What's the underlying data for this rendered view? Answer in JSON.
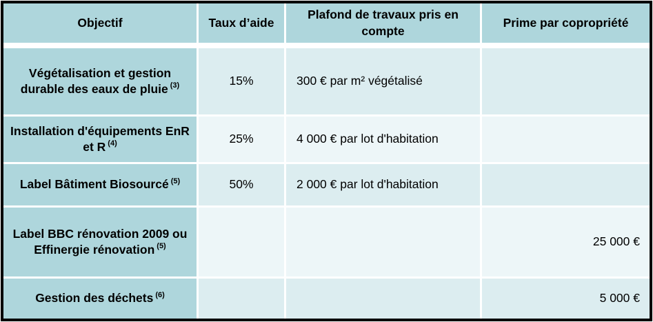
{
  "table": {
    "columns": [
      {
        "label": "Objectif"
      },
      {
        "label": "Taux d’aide"
      },
      {
        "label": "Plafond de travaux pris en compte"
      },
      {
        "label": "Prime par copropriété"
      }
    ],
    "rows": [
      {
        "objectif": "Végétalisation et gestion durable des eaux de pluie",
        "note": "(3)",
        "taux": "15%",
        "plafond": "300 € par m² végétalisé",
        "prime": ""
      },
      {
        "objectif": "Installation d'équipements EnR et R",
        "note": "(4)",
        "taux": "25%",
        "plafond": "4 000 € par lot d'habitation",
        "prime": ""
      },
      {
        "objectif": "Label Bâtiment Biosourcé",
        "note": "(5)",
        "taux": "50%",
        "plafond": "2 000 € par lot d'habitation",
        "prime": ""
      },
      {
        "objectif": "Label BBC rénovation 2009 ou Effinergie rénovation",
        "note": "(5)",
        "taux": "",
        "plafond": "",
        "prime": "25 000 €"
      },
      {
        "objectif": "Gestion des déchets",
        "note": "(6)",
        "taux": "",
        "plafond": "",
        "prime": "5 000 €"
      }
    ]
  },
  "colors": {
    "header_teal": "#aed6dc",
    "row_band_dark": "#dcedf0",
    "row_band_light": "#edf6f8",
    "separator": "#ffffff",
    "outer_border": "#000000",
    "text": "#000000"
  }
}
